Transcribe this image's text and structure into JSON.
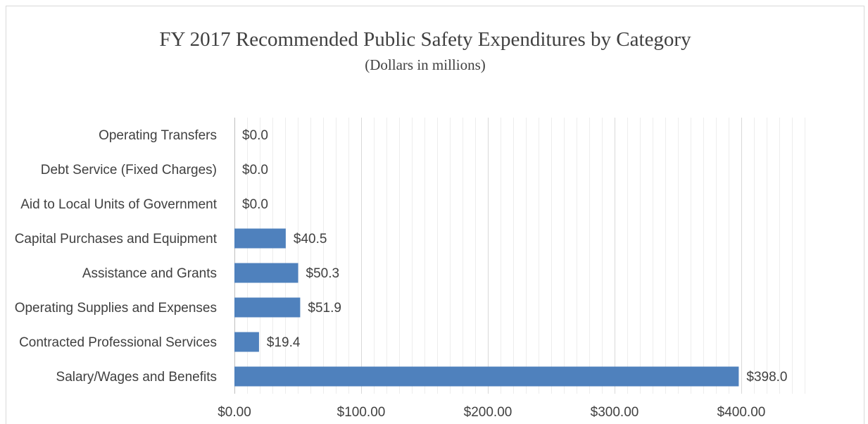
{
  "chart_data": {
    "type": "bar",
    "orientation": "horizontal",
    "title": "FY 2017 Recommended Public Safety Expenditures by Category",
    "subtitle": "(Dollars in millions)",
    "categories": [
      "Operating Transfers",
      "Debt Service (Fixed Charges)",
      "Aid to Local Units of Government",
      "Capital Purchases and Equipment",
      "Assistance and Grants",
      "Operating Supplies and Expenses",
      "Contracted Professional Services",
      "Salary/Wages and Benefits"
    ],
    "values": [
      0.0,
      0.0,
      0.0,
      40.5,
      50.3,
      51.9,
      19.4,
      398.0
    ],
    "data_labels": [
      "$0.0",
      "$0.0",
      "$0.0",
      "$40.5",
      "$50.3",
      "$51.9",
      "$19.4",
      "$398.0"
    ],
    "xlim": [
      0,
      450
    ],
    "x_ticks": [
      0,
      100,
      200,
      300,
      400
    ],
    "x_tick_labels": [
      "$0.00",
      "$100.00",
      "$200.00",
      "$300.00",
      "$400.00"
    ],
    "grid": {
      "vertical_major": true,
      "vertical_minor": true,
      "horizontal": false,
      "major_unit": 100,
      "minor_unit": 10
    },
    "colors": {
      "bar": "#4f81bd",
      "text": "#404040",
      "gridline_major": "#d9d9d9",
      "gridline_minor": "#ededed",
      "axis_line": "#bfbfbf",
      "chart_border": "#d9d9d9"
    }
  }
}
